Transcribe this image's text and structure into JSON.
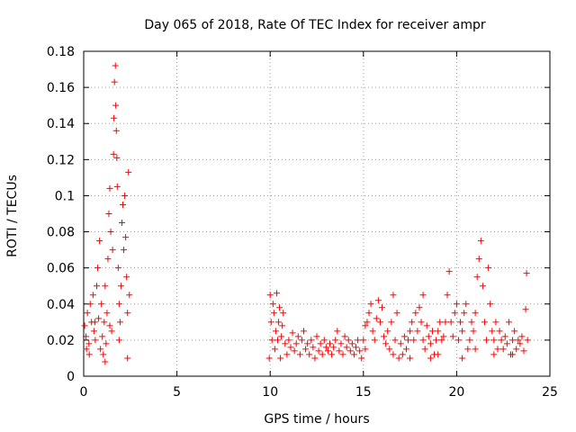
{
  "chart_data": {
    "type": "scatter",
    "title": "Day 065 of 2018, Rate Of TEC Index for receiver ampr",
    "xlabel": "GPS time / hours",
    "ylabel": "ROTI / TECUs",
    "xlim": [
      0,
      25
    ],
    "ylim": [
      0,
      0.18
    ],
    "xticks": [
      0,
      5,
      10,
      15,
      20,
      25
    ],
    "xtick_labels": [
      "0",
      "5",
      "10",
      "15",
      "20",
      "25"
    ],
    "yticks": [
      0,
      0.02,
      0.04,
      0.06,
      0.08,
      0.1,
      0.12,
      0.14,
      0.16,
      0.18
    ],
    "ytick_labels": [
      "0",
      "0.02",
      "0.04",
      "0.06",
      "0.08",
      "0.1",
      "0.12",
      "0.14",
      "0.16",
      "0.18"
    ],
    "grid": true,
    "marker": "+",
    "color": "#ff0000",
    "series": [
      {
        "name": "ROTI",
        "points": [
          [
            0.05,
            0.028
          ],
          [
            0.12,
            0.022
          ],
          [
            0.2,
            0.035
          ],
          [
            0.28,
            0.018
          ],
          [
            0.35,
            0.04
          ],
          [
            0.42,
            0.03
          ],
          [
            0.5,
            0.045
          ],
          [
            0.55,
            0.025
          ],
          [
            0.62,
            0.02
          ],
          [
            0.7,
            0.05
          ],
          [
            0.75,
            0.06
          ],
          [
            0.8,
            0.032
          ],
          [
            0.85,
            0.075
          ],
          [
            0.9,
            0.015
          ],
          [
            0.95,
            0.04
          ],
          [
            1.0,
            0.022
          ],
          [
            1.05,
            0.012
          ],
          [
            1.1,
            0.03
          ],
          [
            1.15,
            0.05
          ],
          [
            1.2,
            0.018
          ],
          [
            1.25,
            0.035
          ],
          [
            1.3,
            0.065
          ],
          [
            1.35,
            0.09
          ],
          [
            1.4,
            0.104
          ],
          [
            1.45,
            0.08
          ],
          [
            1.5,
            0.025
          ],
          [
            1.55,
            0.07
          ],
          [
            1.6,
            0.123
          ],
          [
            1.62,
            0.143
          ],
          [
            1.65,
            0.163
          ],
          [
            1.7,
            0.172
          ],
          [
            1.72,
            0.15
          ],
          [
            1.75,
            0.136
          ],
          [
            1.78,
            0.121
          ],
          [
            1.8,
            0.105
          ],
          [
            1.85,
            0.06
          ],
          [
            1.9,
            0.04
          ],
          [
            1.95,
            0.03
          ],
          [
            2.0,
            0.05
          ],
          [
            2.05,
            0.085
          ],
          [
            2.1,
            0.095
          ],
          [
            2.15,
            0.07
          ],
          [
            2.2,
            0.1
          ],
          [
            2.25,
            0.077
          ],
          [
            2.3,
            0.055
          ],
          [
            2.35,
            0.035
          ],
          [
            2.4,
            0.113
          ],
          [
            2.45,
            0.045
          ],
          [
            0.3,
            0.012
          ],
          [
            1.15,
            0.008
          ],
          [
            2.35,
            0.01
          ],
          [
            0.6,
            0.03
          ],
          [
            1.4,
            0.028
          ],
          [
            1.9,
            0.02
          ],
          [
            0.15,
            0.015
          ],
          [
            9.95,
            0.01
          ],
          [
            10.0,
            0.045
          ],
          [
            10.05,
            0.03
          ],
          [
            10.1,
            0.02
          ],
          [
            10.15,
            0.04
          ],
          [
            10.2,
            0.035
          ],
          [
            10.25,
            0.015
          ],
          [
            10.3,
            0.025
          ],
          [
            10.35,
            0.046
          ],
          [
            10.4,
            0.02
          ],
          [
            10.45,
            0.03
          ],
          [
            10.5,
            0.038
          ],
          [
            10.55,
            0.01
          ],
          [
            10.6,
            0.022
          ],
          [
            10.65,
            0.028
          ],
          [
            10.7,
            0.035
          ],
          [
            10.8,
            0.018
          ],
          [
            10.9,
            0.012
          ],
          [
            11.0,
            0.02
          ],
          [
            11.1,
            0.016
          ],
          [
            11.2,
            0.024
          ],
          [
            11.3,
            0.014
          ],
          [
            11.4,
            0.018
          ],
          [
            11.5,
            0.022
          ],
          [
            11.6,
            0.012
          ],
          [
            11.7,
            0.02
          ],
          [
            11.8,
            0.025
          ],
          [
            11.9,
            0.015
          ],
          [
            12.0,
            0.018
          ],
          [
            12.1,
            0.012
          ],
          [
            12.2,
            0.02
          ],
          [
            12.3,
            0.016
          ],
          [
            12.4,
            0.01
          ],
          [
            12.5,
            0.022
          ],
          [
            12.6,
            0.014
          ],
          [
            12.7,
            0.018
          ],
          [
            12.8,
            0.012
          ],
          [
            12.9,
            0.02
          ],
          [
            13.0,
            0.016
          ],
          [
            13.1,
            0.014
          ],
          [
            13.2,
            0.018
          ],
          [
            13.3,
            0.012
          ],
          [
            13.4,
            0.016
          ],
          [
            13.5,
            0.02
          ],
          [
            13.6,
            0.025
          ],
          [
            13.7,
            0.014
          ],
          [
            13.8,
            0.018
          ],
          [
            13.9,
            0.012
          ],
          [
            14.0,
            0.022
          ],
          [
            14.1,
            0.016
          ],
          [
            14.2,
            0.02
          ],
          [
            14.3,
            0.014
          ],
          [
            14.4,
            0.018
          ],
          [
            14.5,
            0.012
          ],
          [
            14.6,
            0.016
          ],
          [
            14.7,
            0.02
          ],
          [
            14.8,
            0.014
          ],
          [
            14.9,
            0.01
          ],
          [
            15.0,
            0.02
          ],
          [
            15.1,
            0.028
          ],
          [
            15.2,
            0.03
          ],
          [
            15.3,
            0.035
          ],
          [
            15.4,
            0.04
          ],
          [
            15.5,
            0.025
          ],
          [
            15.6,
            0.02
          ],
          [
            15.7,
            0.032
          ],
          [
            15.8,
            0.042
          ],
          [
            15.9,
            0.03
          ],
          [
            16.0,
            0.038
          ],
          [
            16.1,
            0.022
          ],
          [
            16.2,
            0.018
          ],
          [
            16.3,
            0.025
          ],
          [
            16.4,
            0.015
          ],
          [
            16.5,
            0.03
          ],
          [
            16.6,
            0.012
          ],
          [
            16.7,
            0.02
          ],
          [
            16.8,
            0.035
          ],
          [
            16.9,
            0.01
          ],
          [
            17.0,
            0.018
          ],
          [
            17.1,
            0.012
          ],
          [
            17.2,
            0.022
          ],
          [
            17.3,
            0.015
          ],
          [
            17.4,
            0.02
          ],
          [
            17.5,
            0.025
          ],
          [
            17.6,
            0.03
          ],
          [
            17.7,
            0.02
          ],
          [
            17.8,
            0.035
          ],
          [
            17.9,
            0.025
          ],
          [
            18.0,
            0.038
          ],
          [
            18.1,
            0.03
          ],
          [
            18.2,
            0.02
          ],
          [
            18.3,
            0.015
          ],
          [
            18.4,
            0.028
          ],
          [
            18.5,
            0.022
          ],
          [
            18.6,
            0.018
          ],
          [
            18.7,
            0.025
          ],
          [
            18.8,
            0.012
          ],
          [
            18.9,
            0.02
          ],
          [
            19.0,
            0.025
          ],
          [
            19.1,
            0.03
          ],
          [
            19.2,
            0.02
          ],
          [
            19.3,
            0.022
          ],
          [
            19.4,
            0.03
          ],
          [
            19.5,
            0.045
          ],
          [
            19.6,
            0.058
          ],
          [
            19.7,
            0.03
          ],
          [
            19.8,
            0.022
          ],
          [
            19.9,
            0.035
          ],
          [
            20.0,
            0.04
          ],
          [
            20.1,
            0.02
          ],
          [
            20.2,
            0.03
          ],
          [
            20.3,
            0.025
          ],
          [
            20.4,
            0.035
          ],
          [
            20.5,
            0.04
          ],
          [
            20.6,
            0.015
          ],
          [
            20.7,
            0.02
          ],
          [
            20.8,
            0.03
          ],
          [
            20.9,
            0.025
          ],
          [
            21.0,
            0.035
          ],
          [
            21.1,
            0.055
          ],
          [
            21.2,
            0.065
          ],
          [
            21.3,
            0.075
          ],
          [
            21.4,
            0.05
          ],
          [
            21.5,
            0.03
          ],
          [
            21.6,
            0.02
          ],
          [
            21.7,
            0.06
          ],
          [
            21.8,
            0.04
          ],
          [
            21.9,
            0.025
          ],
          [
            22.0,
            0.02
          ],
          [
            22.1,
            0.03
          ],
          [
            22.2,
            0.015
          ],
          [
            22.3,
            0.025
          ],
          [
            22.4,
            0.02
          ],
          [
            22.5,
            0.015
          ],
          [
            22.6,
            0.022
          ],
          [
            22.7,
            0.018
          ],
          [
            22.8,
            0.03
          ],
          [
            22.9,
            0.012
          ],
          [
            23.0,
            0.02
          ],
          [
            23.1,
            0.025
          ],
          [
            23.2,
            0.015
          ],
          [
            23.3,
            0.02
          ],
          [
            23.4,
            0.018
          ],
          [
            23.5,
            0.022
          ],
          [
            23.6,
            0.014
          ],
          [
            23.7,
            0.037
          ],
          [
            23.75,
            0.057
          ],
          [
            23.8,
            0.02
          ],
          [
            18.2,
            0.045
          ],
          [
            19.0,
            0.012
          ],
          [
            20.3,
            0.01
          ],
          [
            21.0,
            0.015
          ],
          [
            22.0,
            0.012
          ],
          [
            23.0,
            0.012
          ],
          [
            17.5,
            0.01
          ],
          [
            18.6,
            0.01
          ],
          [
            15.1,
            0.015
          ],
          [
            16.6,
            0.045
          ]
        ]
      }
    ]
  }
}
